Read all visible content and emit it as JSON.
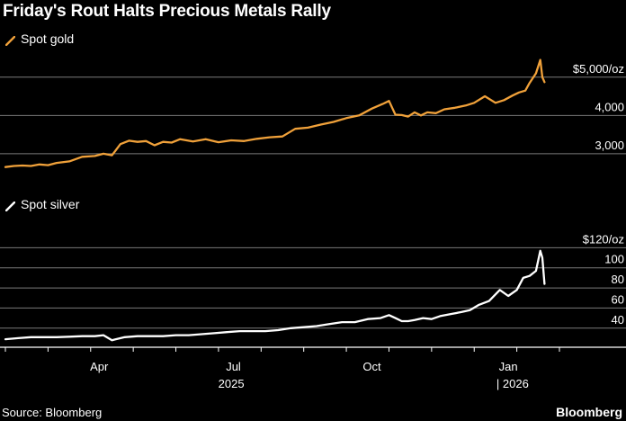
{
  "title": "Friday's Rout Halts Precious Metals Rally",
  "source": "Source: Bloomberg",
  "brand": "Bloomberg",
  "colors": {
    "gold": "#f0a13a",
    "silver": "#ffffff",
    "grid": "#7a7a7a",
    "text": "#ffffff"
  },
  "chart_data": [
    {
      "type": "line",
      "series_name": "Spot gold",
      "unit_label": "$5,000/oz",
      "yticks": [
        {
          "value": 5000,
          "label": "$5,000/oz"
        },
        {
          "value": 4000,
          "label": "4,000"
        },
        {
          "value": 3000,
          "label": "3,000"
        }
      ],
      "ylim": [
        2550,
        5700
      ],
      "x_range": [
        0,
        13
      ],
      "x": [
        0,
        0.2,
        0.4,
        0.6,
        0.8,
        1.0,
        1.2,
        1.5,
        1.8,
        2.1,
        2.3,
        2.5,
        2.7,
        2.9,
        3.1,
        3.3,
        3.5,
        3.7,
        3.9,
        4.1,
        4.4,
        4.7,
        5.0,
        5.3,
        5.6,
        5.9,
        6.2,
        6.5,
        6.8,
        7.1,
        7.4,
        7.7,
        8.0,
        8.3,
        8.6,
        8.85,
        9.0,
        9.15,
        9.3,
        9.45,
        9.6,
        9.75,
        9.9,
        10.1,
        10.3,
        10.55,
        10.8,
        11.0,
        11.25,
        11.5,
        11.7,
        11.9,
        12.05,
        12.2,
        12.3,
        12.45,
        12.55,
        12.6,
        12.65
      ],
      "values": [
        2650,
        2680,
        2690,
        2680,
        2720,
        2700,
        2760,
        2800,
        2920,
        2940,
        3000,
        2960,
        3250,
        3340,
        3310,
        3330,
        3220,
        3310,
        3290,
        3380,
        3320,
        3380,
        3300,
        3350,
        3330,
        3390,
        3430,
        3450,
        3650,
        3680,
        3760,
        3830,
        3930,
        4000,
        4180,
        4300,
        4380,
        4020,
        4010,
        3970,
        4080,
        4000,
        4080,
        4060,
        4160,
        4200,
        4260,
        4330,
        4500,
        4330,
        4400,
        4520,
        4600,
        4650,
        4850,
        5100,
        5450,
        5000,
        4870
      ]
    },
    {
      "type": "line",
      "series_name": "Spot silver",
      "unit_label": "$120/oz",
      "yticks": [
        {
          "value": 120,
          "label": "$120/oz"
        },
        {
          "value": 100,
          "label": "100"
        },
        {
          "value": 80,
          "label": "80"
        },
        {
          "value": 60,
          "label": "60"
        },
        {
          "value": 40,
          "label": "40"
        }
      ],
      "ylim": [
        21,
        132
      ],
      "x_range": [
        0,
        13
      ],
      "x": [
        0,
        0.3,
        0.6,
        0.9,
        1.2,
        1.5,
        1.8,
        2.1,
        2.3,
        2.5,
        2.8,
        3.1,
        3.4,
        3.7,
        4.0,
        4.3,
        4.6,
        4.9,
        5.2,
        5.5,
        5.8,
        6.1,
        6.4,
        6.7,
        7.0,
        7.3,
        7.6,
        7.9,
        8.2,
        8.5,
        8.8,
        9.0,
        9.15,
        9.3,
        9.45,
        9.6,
        9.8,
        10.0,
        10.2,
        10.45,
        10.7,
        10.9,
        11.1,
        11.35,
        11.6,
        11.8,
        12.0,
        12.15,
        12.3,
        12.45,
        12.55,
        12.6,
        12.65
      ],
      "values": [
        29,
        30,
        31,
        31,
        31,
        31.5,
        32,
        32,
        33,
        28,
        31,
        32,
        32,
        32,
        33,
        33,
        34,
        35,
        36,
        37,
        37,
        37,
        38,
        40,
        41,
        42,
        44,
        46,
        46,
        49,
        50,
        53,
        50,
        47,
        47,
        48,
        50,
        49,
        52,
        54,
        56,
        58,
        63,
        67,
        78,
        72,
        78,
        90,
        92,
        97,
        117,
        110,
        84
      ]
    }
  ],
  "x_axis": {
    "ticks": [
      {
        "x": 2.2,
        "label": "Apr"
      },
      {
        "x": 5.35,
        "label": "Jul"
      },
      {
        "x": 8.6,
        "label": "Oct"
      },
      {
        "x": 11.8,
        "label": "Jan"
      }
    ],
    "years": [
      {
        "x": 5.3,
        "label": "2025"
      },
      {
        "x": 11.9,
        "label": "| 2026"
      }
    ]
  }
}
